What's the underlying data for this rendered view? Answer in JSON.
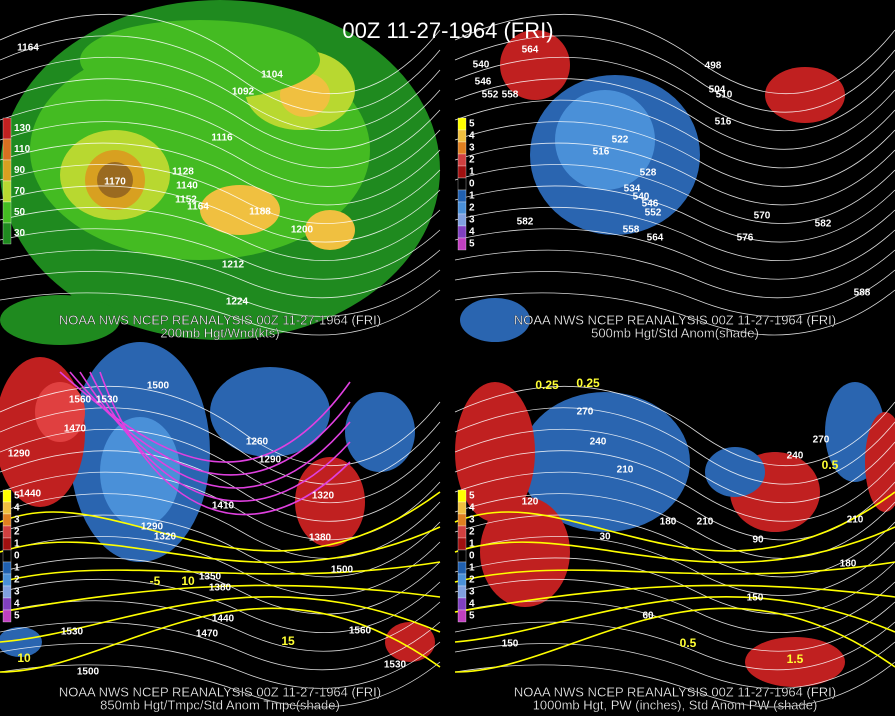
{
  "title": "00Z 11-27-1964 (FRI)",
  "panels": [
    {
      "caption": [
        "NOAA NWS NCEP REANALYSIS 00Z 11-27-1964 (FRI)",
        "200mb Hgt/Wnd(kts)"
      ],
      "legend": [
        "130",
        "110",
        "90",
        "70",
        "50",
        "30"
      ],
      "labels": [
        "1164",
        "1092",
        "1104",
        "1116",
        "1170",
        "1128",
        "1140",
        "1152",
        "1164",
        "1188",
        "1200",
        "1212",
        "1224"
      ],
      "yellow_labels": []
    },
    {
      "caption": [
        "NOAA NWS NCEP REANALYSIS 00Z 11-27-1964 (FRI)",
        "500mb Hgt/Std Anom(shade)"
      ],
      "legend": [
        "5",
        "4",
        "3",
        "2",
        "1",
        "0",
        "1",
        "2",
        "3",
        "4",
        "5"
      ],
      "labels": [
        "540",
        "546",
        "552",
        "558",
        "564",
        "498",
        "504",
        "510",
        "516",
        "522",
        "516",
        "528",
        "534",
        "540",
        "546",
        "552",
        "558",
        "564",
        "570",
        "576",
        "582",
        "582",
        "588"
      ],
      "yellow_labels": []
    },
    {
      "caption": [
        "NOAA NWS NCEP REANALYSIS 00Z 11-27-1964 (FRI)",
        "850mb Hgt/Tmpc/Std Anom Tmpc(shade)"
      ],
      "legend": [
        "5",
        "4",
        "3",
        "2",
        "1",
        "0",
        "1",
        "2",
        "3",
        "4",
        "5"
      ],
      "labels": [
        "1500",
        "1560",
        "1530",
        "1470",
        "1290",
        "1440",
        "1260",
        "1290",
        "1410",
        "1320",
        "1290",
        "1320",
        "1380",
        "1350",
        "1380",
        "1440",
        "1470",
        "1500",
        "1530",
        "1560",
        "1500",
        "1530"
      ],
      "yellow_labels": [
        "-5",
        "10",
        "15",
        "10"
      ]
    },
    {
      "caption": [
        "NOAA NWS NCEP REANALYSIS 00Z 11-27-1964 (FRI)",
        "1000mb Hgt, PW (inches), Std Anom PW (shade)"
      ],
      "legend": [
        "5",
        "4",
        "3",
        "2",
        "1",
        "0",
        "1",
        "2",
        "3",
        "4",
        "5"
      ],
      "labels": [
        "270",
        "240",
        "210",
        "120",
        "30",
        "180",
        "210",
        "90",
        "60",
        "150",
        "150",
        "180",
        "210",
        "240",
        "270"
      ],
      "yellow_labels": [
        "0.25",
        "0.25",
        "0.5",
        "1.5",
        "0.5"
      ]
    }
  ]
}
